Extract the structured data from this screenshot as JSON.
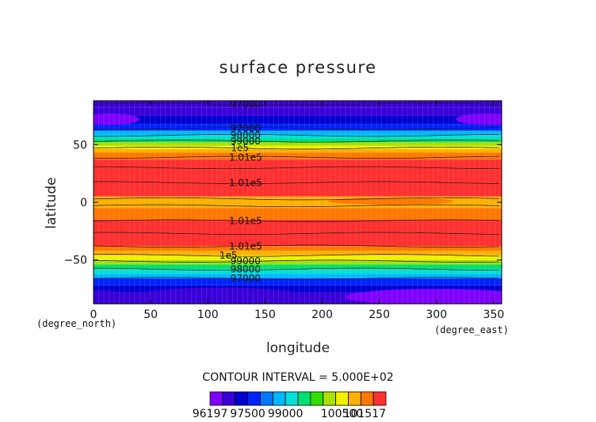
{
  "chart_data": {
    "type": "heatmap",
    "title": "surface pressure",
    "xlabel": "longitude",
    "ylabel": "latitude",
    "x_unit": "(degree_east)",
    "y_unit": "(degree_north)",
    "xlim": [
      0,
      357
    ],
    "ylim": [
      -88,
      88
    ],
    "x_ticks": [
      0,
      50,
      100,
      150,
      200,
      250,
      300,
      350
    ],
    "y_ticks": [
      -50,
      0,
      50
    ],
    "contour_interval_text": "CONTOUR INTERVAL = 5.000E+02",
    "colorbar": {
      "min": 96197,
      "max": 101517,
      "labels": [
        "96197",
        "97500",
        "99000",
        "100500",
        "101517"
      ],
      "colors": [
        "#7f00ff",
        "#3a00d8",
        "#0000d0",
        "#0022ff",
        "#0077ff",
        "#00b8ff",
        "#00e0d8",
        "#00e070",
        "#30e000",
        "#a8e000",
        "#f0f000",
        "#ffb000",
        "#ff7800",
        "#ff3030"
      ]
    },
    "bands": [
      {
        "lat_top": 88,
        "lat_bottom": 82,
        "value": 96600
      },
      {
        "lat_top": 82,
        "lat_bottom": 75,
        "value": 96900
      },
      {
        "lat_top": 75,
        "lat_bottom": 68,
        "value": 97200
      },
      {
        "lat_top": 68,
        "lat_bottom": 62,
        "value": 97700
      },
      {
        "lat_top": 62,
        "lat_bottom": 58,
        "value": 98200
      },
      {
        "lat_top": 58,
        "lat_bottom": 55,
        "value": 98700
      },
      {
        "lat_top": 55,
        "lat_bottom": 52,
        "value": 99200
      },
      {
        "lat_top": 52,
        "lat_bottom": 49,
        "value": 99700
      },
      {
        "lat_top": 49,
        "lat_bottom": 46,
        "value": 100200
      },
      {
        "lat_top": 46,
        "lat_bottom": 43,
        "value": 100500
      },
      {
        "lat_top": 43,
        "lat_bottom": 37,
        "value": 100900
      },
      {
        "lat_top": 37,
        "lat_bottom": 5,
        "value": 101300
      },
      {
        "lat_top": 5,
        "lat_bottom": -5,
        "value": 100700
      },
      {
        "lat_top": -5,
        "lat_bottom": -15,
        "value": 101000
      },
      {
        "lat_top": -15,
        "lat_bottom": -38,
        "value": 101300
      },
      {
        "lat_top": -38,
        "lat_bottom": -42,
        "value": 100900
      },
      {
        "lat_top": -42,
        "lat_bottom": -46,
        "value": 100500
      },
      {
        "lat_top": -46,
        "lat_bottom": -50,
        "value": 100200
      },
      {
        "lat_top": -50,
        "lat_bottom": -54,
        "value": 99700
      },
      {
        "lat_top": -54,
        "lat_bottom": -58,
        "value": 99200
      },
      {
        "lat_top": -58,
        "lat_bottom": -62,
        "value": 98700
      },
      {
        "lat_top": -62,
        "lat_bottom": -66,
        "value": 98200
      },
      {
        "lat_top": -66,
        "lat_bottom": -72,
        "value": 97700
      },
      {
        "lat_top": -72,
        "lat_bottom": -78,
        "value": 97200
      },
      {
        "lat_top": -78,
        "lat_bottom": -88,
        "value": 96900
      }
    ],
    "patches": [
      {
        "lon_center": 15,
        "lat_center": 72,
        "lon_radius": 25,
        "lat_radius": 5,
        "value": 96300
      },
      {
        "lon_center": 345,
        "lat_center": 72,
        "lon_radius": 28,
        "lat_radius": 5,
        "value": 96300
      },
      {
        "lon_center": 110,
        "lat_center": -80,
        "lon_radius": 70,
        "lat_radius": 6,
        "value": 96600
      },
      {
        "lon_center": 300,
        "lat_center": -82,
        "lon_radius": 80,
        "lat_radius": 7,
        "value": 96400
      },
      {
        "lon_center": 5,
        "lat_center": -82,
        "lon_radius": 20,
        "lat_radius": 6,
        "value": 96600
      },
      {
        "lon_center": 260,
        "lat_center": 1,
        "lon_radius": 55,
        "lat_radius": 3,
        "value": 101000
      }
    ],
    "contour_labels": [
      {
        "text": "97000",
        "lon": 133,
        "lat": 85
      },
      {
        "text": "97000",
        "lon": 133,
        "lat": 64
      },
      {
        "text": "98000",
        "lon": 133,
        "lat": 58
      },
      {
        "text": "99000",
        "lon": 133,
        "lat": 53
      },
      {
        "text": "1e5",
        "lon": 128,
        "lat": 47
      },
      {
        "text": "1.01e5",
        "lon": 133,
        "lat": 39
      },
      {
        "text": "1.01e5",
        "lon": 133,
        "lat": 17
      },
      {
        "text": "1.01e5",
        "lon": 133,
        "lat": -16
      },
      {
        "text": "1.01e5",
        "lon": 133,
        "lat": -38
      },
      {
        "text": "1e5",
        "lon": 118,
        "lat": -46
      },
      {
        "text": "99000",
        "lon": 133,
        "lat": -51
      },
      {
        "text": "98000",
        "lon": 133,
        "lat": -58
      },
      {
        "text": "97000",
        "lon": 133,
        "lat": -66
      }
    ],
    "contour_lines": [
      85,
      64,
      58,
      53,
      47,
      39,
      30,
      17,
      3,
      -3,
      -16,
      -27,
      -38,
      -46,
      -51,
      -58,
      -66
    ]
  }
}
